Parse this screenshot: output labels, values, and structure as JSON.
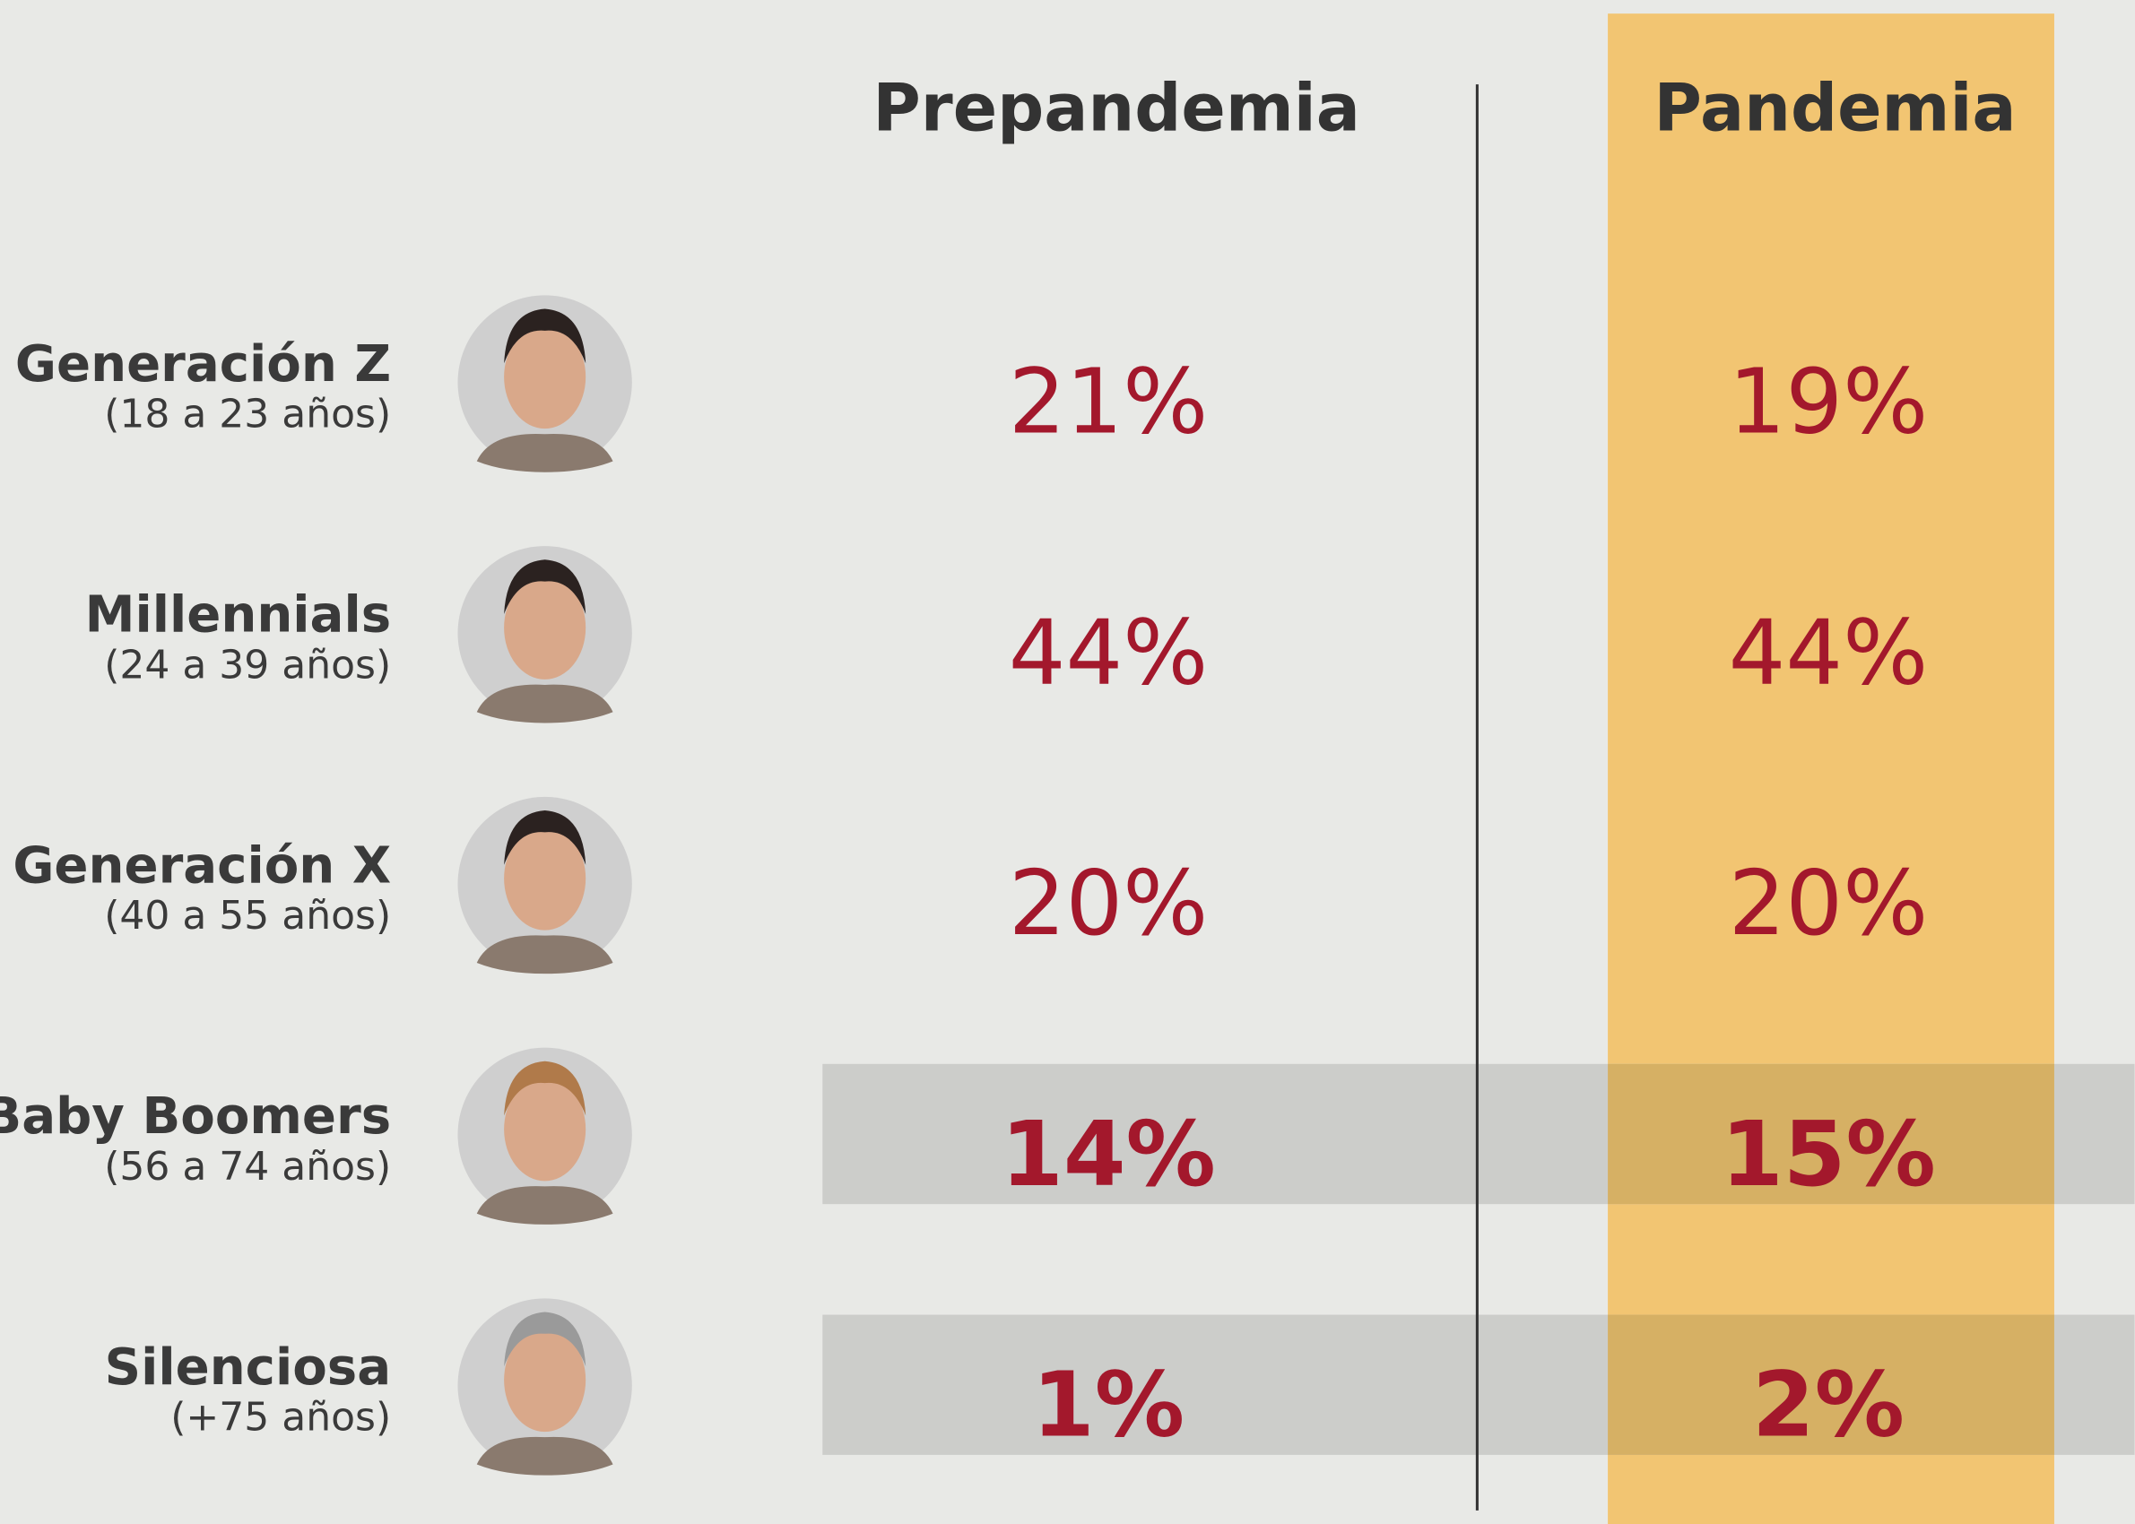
{
  "columns": [
    "Prepandemia",
    "Pandemia"
  ],
  "rows": [
    {
      "name": "Generación Z",
      "age": "(18 a 23 años)",
      "values": [
        "21%",
        "19%"
      ],
      "highlight": false
    },
    {
      "name": "Millennials",
      "age": "(24 a 39 años)",
      "values": [
        "44%",
        "44%"
      ],
      "highlight": false
    },
    {
      "name": "Generación X",
      "age": "(40 a 55 años)",
      "values": [
        "20%",
        "20%"
      ],
      "highlight": false
    },
    {
      "name": "Baby Boomers",
      "age": "(56 a 74 años)",
      "values": [
        "14%",
        "15%"
      ],
      "highlight": true
    },
    {
      "name": "Silenciosa",
      "age": "(+75 años)",
      "values": [
        "1%",
        "2%"
      ],
      "highlight": true
    }
  ]
}
